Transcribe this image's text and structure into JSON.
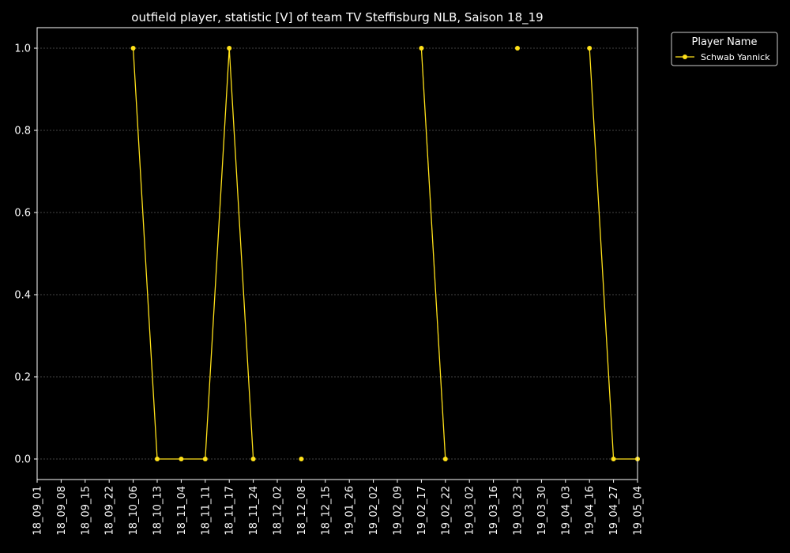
{
  "chart_data": {
    "type": "line",
    "title": "outfield player, statistic [V] of team TV Steffisburg NLB, Saison 18_19",
    "xlabel": "",
    "ylabel": "",
    "x": [
      "18_09_01",
      "18_09_08",
      "18_09_15",
      "18_09_22",
      "18_10_06",
      "18_10_13",
      "18_11_04",
      "18_11_11",
      "18_11_17",
      "18_11_24",
      "18_12_02",
      "18_12_08",
      "18_12_15",
      "19_01_26",
      "19_02_02",
      "19_02_09",
      "19_02_17",
      "19_02_22",
      "19_03_02",
      "19_03_16",
      "19_03_23",
      "19_03_30",
      "19_04_03",
      "19_04_16",
      "19_04_27",
      "19_05_04"
    ],
    "ylim": [
      -0.05,
      1.05
    ],
    "yticks": [
      "0.0",
      "0.2",
      "0.4",
      "0.6",
      "0.8",
      "1.0"
    ],
    "grid": "horizontal dashed",
    "legend": {
      "title": "Player Name",
      "placement": "outside top-right"
    },
    "series": [
      {
        "name": "Schwab Yannick",
        "color": "#ffe119",
        "values": [
          null,
          null,
          null,
          null,
          1,
          0,
          0,
          0,
          1,
          0,
          null,
          0,
          null,
          null,
          null,
          null,
          1,
          0,
          null,
          null,
          1,
          null,
          null,
          1,
          0,
          0
        ]
      }
    ]
  },
  "colors": {
    "background": "#000000",
    "axes": "#ffffff",
    "grid": "#888888"
  }
}
